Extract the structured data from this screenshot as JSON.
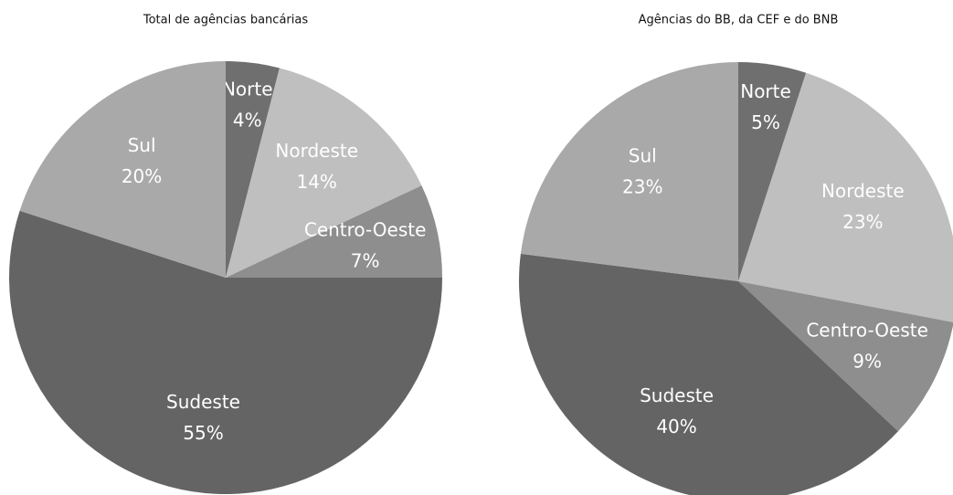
{
  "chart_data": [
    {
      "type": "pie",
      "title": "Total de agências bancárias",
      "categories": [
        "Norte",
        "Nordeste",
        "Centro-Oeste",
        "Sudeste",
        "Sul"
      ],
      "values": [
        4,
        14,
        7,
        55,
        20
      ],
      "value_labels": [
        "4%",
        "14%",
        "7%",
        "55%",
        "20%"
      ],
      "colors": [
        "#6f6f6f",
        "#bfbfbf",
        "#8e8e8e",
        "#646464",
        "#a9a9a9"
      ]
    },
    {
      "type": "pie",
      "title": "Agências do BB, da CEF e do BNB",
      "categories": [
        "Norte",
        "Nordeste",
        "Centro-Oeste",
        "Sudeste",
        "Sul"
      ],
      "values": [
        5,
        23,
        9,
        40,
        23
      ],
      "value_labels": [
        "5%",
        "23%",
        "9%",
        "40%",
        "23%"
      ],
      "colors": [
        "#6f6f6f",
        "#bfbfbf",
        "#8e8e8e",
        "#646464",
        "#a9a9a9"
      ]
    }
  ]
}
